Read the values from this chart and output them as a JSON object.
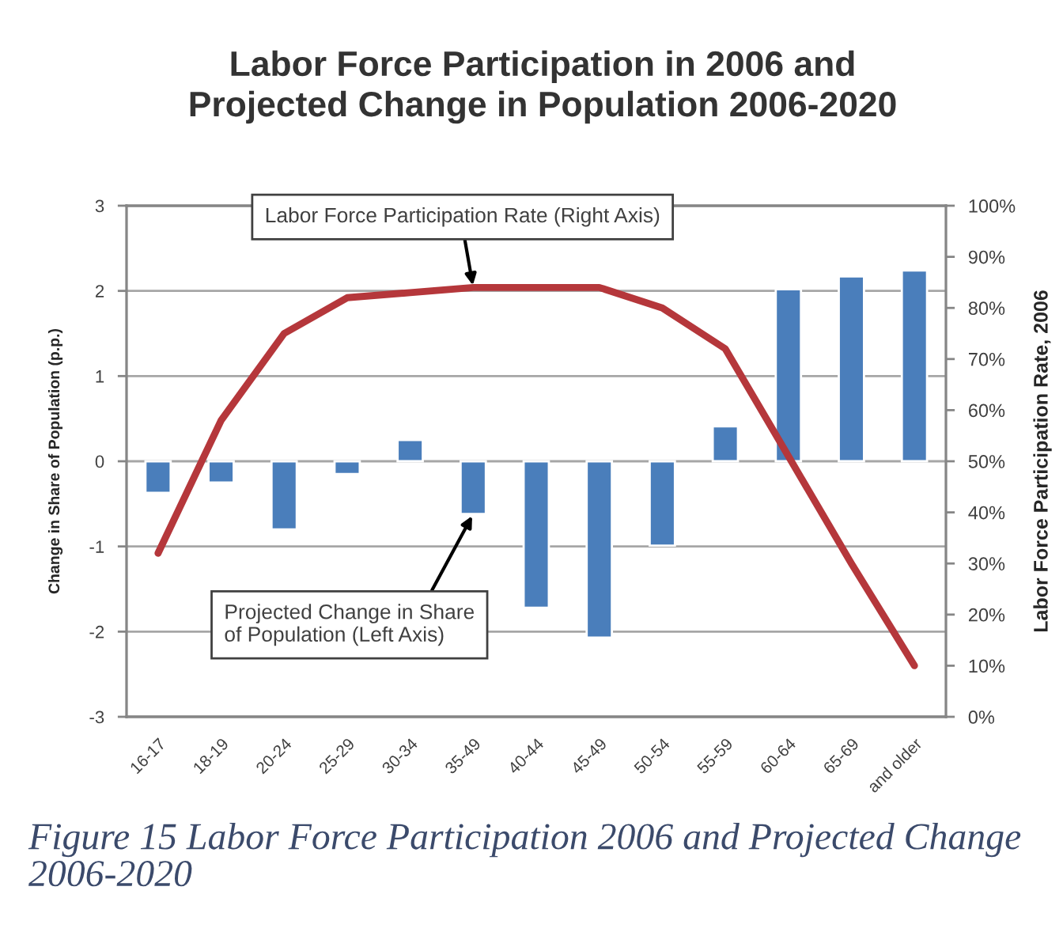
{
  "chart_data": {
    "type": "bar",
    "title": "Labor Force Participation in 2006 and\nProjected Change in Population 2006-2020",
    "ylabel": "Change in Share of Population (p.p.)",
    "y2label": "Labor Force Participation Rate, 2006",
    "categories": [
      "16-17",
      "18-19",
      "20-24",
      "25-29",
      "30-34",
      "35-49",
      "40-44",
      "45-49",
      "50-54",
      "55-59",
      "60-64",
      "65-69",
      "and older"
    ],
    "series": [
      {
        "color": "#4a7ebb",
        "values": [
          -0.37,
          -0.25,
          -0.8,
          -0.15,
          0.25,
          -0.62,
          -1.72,
          -2.07,
          -0.99,
          0.41,
          2.02,
          2.17,
          2.24
        ]
      },
      {
        "type": "line",
        "axis": "y2",
        "color": "#b5373b",
        "values": [
          32,
          58,
          75,
          82,
          83,
          84,
          84,
          84,
          80,
          72,
          51,
          30,
          10
        ]
      }
    ],
    "ylim": [
      -3,
      3
    ],
    "yticks": [
      -3,
      -2,
      -1,
      0,
      1,
      2,
      3
    ],
    "y2lim": [
      0,
      100
    ],
    "y2ticks": [
      {
        "value": 0,
        "label": "0%"
      },
      {
        "value": 10,
        "label": "10%"
      },
      {
        "value": 20,
        "label": "20%"
      },
      {
        "value": 30,
        "label": "30%"
      },
      {
        "value": 40,
        "label": "40%"
      },
      {
        "value": 50,
        "label": "50%"
      },
      {
        "value": 60,
        "label": "60%"
      },
      {
        "value": 70,
        "label": "70%"
      },
      {
        "value": 80,
        "label": "80%"
      },
      {
        "value": 90,
        "label": "90%"
      },
      {
        "value": 100,
        "label": "100%"
      }
    ],
    "grid": "y",
    "annotations": [
      {
        "text": "Labor Force Participation Rate (Right Axis)",
        "x": "35-49",
        "y": 2.04
      },
      {
        "text": "Projected Change in Share\nof Population (Left Axis)",
        "x": "35-49",
        "y": -0.62
      },
      "Figure 15 Labor Force Participation 2006 and Projected Change 2006-2020"
    ]
  }
}
